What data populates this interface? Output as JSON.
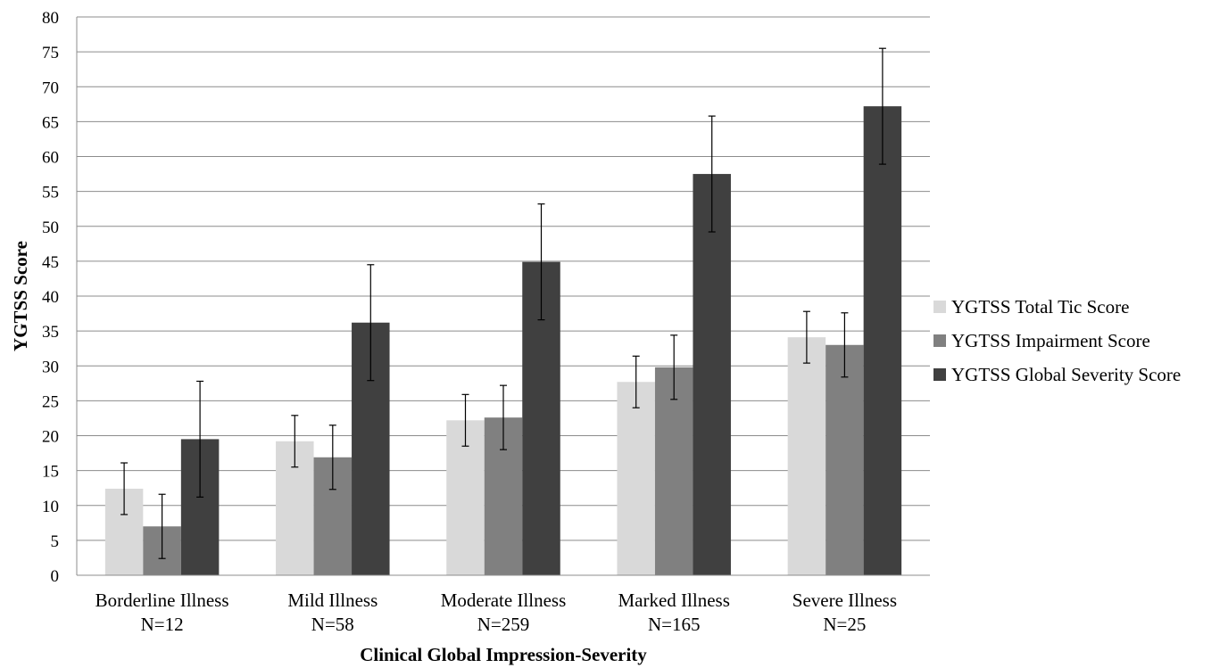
{
  "chart_data": {
    "type": "bar",
    "xlabel": "Clinical Global Impression-Severity",
    "ylabel": "YGTSS Score",
    "ylim": [
      0,
      80
    ],
    "ytick_step": 5,
    "grid": true,
    "legend_position": "right",
    "categories": [
      {
        "line1": "Borderline Illness",
        "line2": "N=12"
      },
      {
        "line1": "Mild Illness",
        "line2": "N=58"
      },
      {
        "line1": "Moderate Illness",
        "line2": "N=259"
      },
      {
        "line1": "Marked Illness",
        "line2": "N=165"
      },
      {
        "line1": "Severe Illness",
        "line2": "N=25"
      }
    ],
    "series": [
      {
        "name": "YGTSS Total Tic Score",
        "color": "#d9d9d9",
        "values": [
          12.4,
          19.2,
          22.2,
          27.7,
          34.1
        ],
        "error": [
          3.7,
          3.7,
          3.7,
          3.7,
          3.7
        ]
      },
      {
        "name": "YGTSS Impairment Score",
        "color": "#808080",
        "values": [
          7.0,
          16.9,
          22.6,
          29.8,
          33.0
        ],
        "error": [
          4.6,
          4.6,
          4.6,
          4.6,
          4.6
        ]
      },
      {
        "name": "YGTSS Global Severity Score",
        "color": "#404040",
        "values": [
          19.5,
          36.2,
          44.9,
          57.5,
          67.2
        ],
        "error": [
          8.3,
          8.3,
          8.3,
          8.3,
          8.3
        ]
      }
    ]
  }
}
